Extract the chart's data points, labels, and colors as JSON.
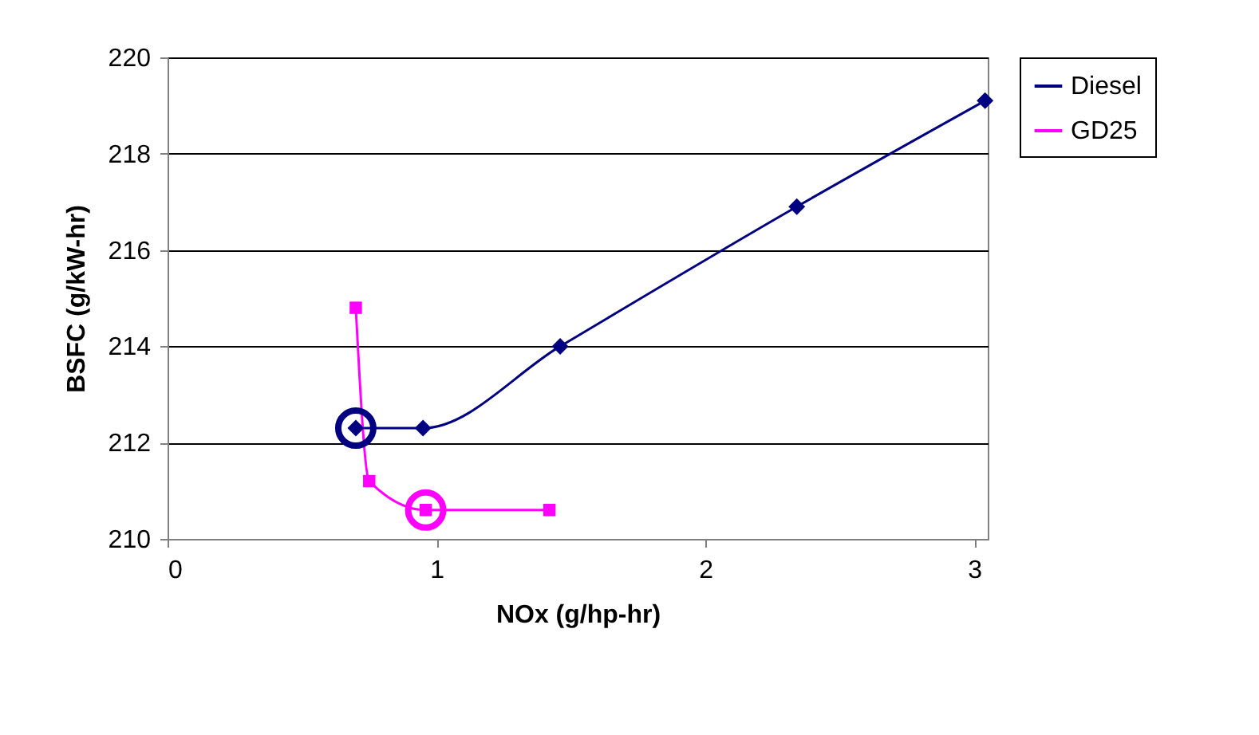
{
  "chart_data": {
    "type": "line",
    "xlabel": "NOx (g/hp-hr)",
    "ylabel": "BSFC (g/kW-hr)",
    "xlim": [
      0,
      3.05
    ],
    "xticks": [
      0,
      1,
      2,
      3
    ],
    "ylim": [
      210,
      220
    ],
    "yticks": [
      210,
      212,
      214,
      216,
      218,
      220
    ],
    "grid": "y",
    "legend": "right",
    "line_style": "solid",
    "series": [
      {
        "name": "Diesel",
        "color": "#000080",
        "marker": "diamond",
        "x": [
          0.7,
          0.95,
          1.46,
          2.34,
          3.04
        ],
        "values": [
          212.3,
          212.3,
          214.0,
          216.9,
          219.1
        ]
      },
      {
        "name": "GD25",
        "color": "#ff00ff",
        "marker": "square",
        "x": [
          0.7,
          0.75,
          0.96,
          1.42
        ],
        "values": [
          214.8,
          211.2,
          210.6,
          210.6
        ]
      }
    ]
  }
}
